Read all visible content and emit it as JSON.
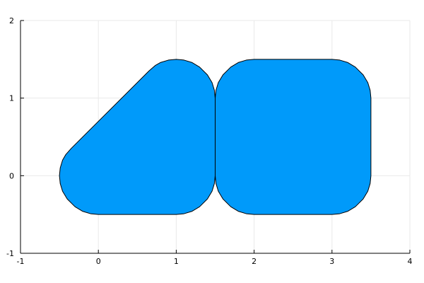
{
  "chart_data": {
    "type": "area",
    "xlim": [
      -1,
      4
    ],
    "ylim": [
      -1,
      2
    ],
    "x_ticks": [
      -1,
      0,
      1,
      2,
      3,
      4
    ],
    "y_ticks": [
      -1,
      0,
      1,
      2
    ],
    "x_tick_labels": [
      "-1",
      "0",
      "1",
      "2",
      "3",
      "4"
    ],
    "y_tick_labels": [
      "-1",
      "0",
      "1",
      "2"
    ],
    "grid": true,
    "legend": "none",
    "series": [
      {
        "shape": "rounded-polygon-1",
        "fill": "#009AFA",
        "stroke": "#000000",
        "outline": [
          [
            1.0,
            1.5
          ],
          [
            1.1,
            1.49
          ],
          [
            1.2,
            1.46
          ],
          [
            1.3,
            1.4
          ],
          [
            1.4,
            1.3
          ],
          [
            1.46,
            1.2
          ],
          [
            1.49,
            1.1
          ],
          [
            1.5,
            1.0
          ],
          [
            1.5,
            0.0
          ],
          [
            1.49,
            -0.1
          ],
          [
            1.46,
            -0.2
          ],
          [
            1.4,
            -0.3
          ],
          [
            1.3,
            -0.4
          ],
          [
            1.2,
            -0.46
          ],
          [
            1.1,
            -0.49
          ],
          [
            1.0,
            -0.5
          ],
          [
            0.0,
            -0.5
          ],
          [
            -0.1,
            -0.49
          ],
          [
            -0.2,
            -0.46
          ],
          [
            -0.3,
            -0.4
          ],
          [
            -0.4,
            -0.3
          ],
          [
            -0.46,
            -0.2
          ],
          [
            -0.49,
            -0.1
          ],
          [
            -0.5,
            0.0
          ],
          [
            -0.49,
            0.1
          ],
          [
            -0.46,
            0.2
          ],
          [
            -0.42,
            0.27
          ],
          [
            -0.35,
            0.35
          ],
          [
            0.65,
            1.35
          ],
          [
            0.73,
            1.42
          ],
          [
            0.8,
            1.46
          ],
          [
            0.9,
            1.49
          ]
        ]
      },
      {
        "shape": "rounded-rectangle-2",
        "fill": "#009AFA",
        "stroke": "#000000",
        "outline": [
          [
            2.0,
            1.5
          ],
          [
            3.0,
            1.5
          ],
          [
            3.1,
            1.49
          ],
          [
            3.2,
            1.46
          ],
          [
            3.3,
            1.4
          ],
          [
            3.4,
            1.3
          ],
          [
            3.46,
            1.2
          ],
          [
            3.49,
            1.1
          ],
          [
            3.5,
            1.0
          ],
          [
            3.5,
            0.0
          ],
          [
            3.49,
            -0.1
          ],
          [
            3.46,
            -0.2
          ],
          [
            3.4,
            -0.3
          ],
          [
            3.3,
            -0.4
          ],
          [
            3.2,
            -0.46
          ],
          [
            3.1,
            -0.49
          ],
          [
            3.0,
            -0.5
          ],
          [
            2.0,
            -0.5
          ],
          [
            1.9,
            -0.49
          ],
          [
            1.8,
            -0.46
          ],
          [
            1.7,
            -0.4
          ],
          [
            1.6,
            -0.3
          ],
          [
            1.54,
            -0.2
          ],
          [
            1.51,
            -0.1
          ],
          [
            1.5,
            0.0
          ],
          [
            1.5,
            1.0
          ],
          [
            1.51,
            1.1
          ],
          [
            1.54,
            1.2
          ],
          [
            1.6,
            1.3
          ],
          [
            1.7,
            1.4
          ],
          [
            1.8,
            1.46
          ],
          [
            1.9,
            1.49
          ]
        ]
      }
    ]
  }
}
